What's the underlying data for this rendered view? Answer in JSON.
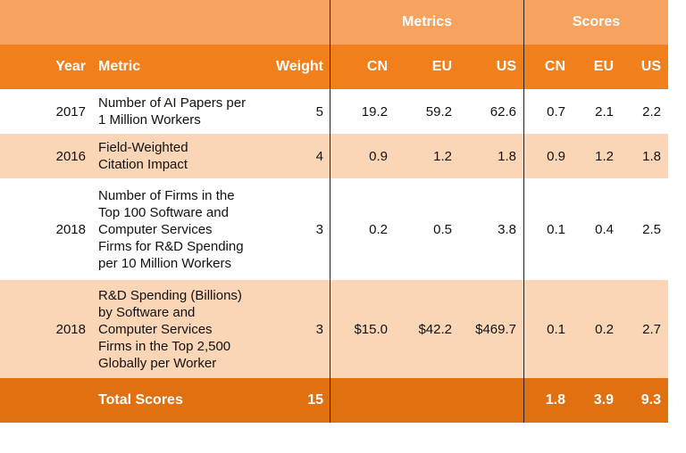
{
  "chart_data": {
    "type": "table",
    "group_headers": [
      {
        "label": "Metrics",
        "span": [
          "CN",
          "EU",
          "US"
        ]
      },
      {
        "label": "Scores",
        "span": [
          "CN",
          "EU",
          "US"
        ]
      }
    ],
    "columns": [
      "Year",
      "Metric",
      "Weight",
      "CN",
      "EU",
      "US",
      "CN",
      "EU",
      "US"
    ],
    "rows": [
      {
        "year": "2017",
        "metric": "Number of AI Papers per\n1 Million Workers",
        "weight": "5",
        "metrics": [
          "19.2",
          "59.2",
          "62.6"
        ],
        "scores": [
          "0.7",
          "2.1",
          "2.2"
        ]
      },
      {
        "year": "2016",
        "metric": "Field-Weighted\nCitation Impact",
        "weight": "4",
        "metrics": [
          "0.9",
          "1.2",
          "1.8"
        ],
        "scores": [
          "0.9",
          "1.2",
          "1.8"
        ]
      },
      {
        "year": "2018",
        "metric": "Number of Firms in the\nTop 100 Software and\nComputer Services\nFirms for R&D Spending\nper 10 Million Workers",
        "weight": "3",
        "metrics": [
          "0.2",
          "0.5",
          "3.8"
        ],
        "scores": [
          "0.1",
          "0.4",
          "2.5"
        ]
      },
      {
        "year": "2018",
        "metric": "R&D Spending (Billions)\nby Software and\nComputer Services\nFirms in the Top 2,500\nGlobally per Worker",
        "weight": "3",
        "metrics": [
          "$15.0",
          "$42.2",
          "$469.7"
        ],
        "scores": [
          "0.1",
          "0.2",
          "2.7"
        ]
      }
    ],
    "total": {
      "label": "Total Scores",
      "weight": "15",
      "scores": [
        "1.8",
        "3.9",
        "9.3"
      ]
    }
  },
  "colors": {
    "header_light": "#f7a25e",
    "header_dark": "#f07f1c",
    "row_alt": "#fbd6b6",
    "total_row": "#e07010"
  }
}
